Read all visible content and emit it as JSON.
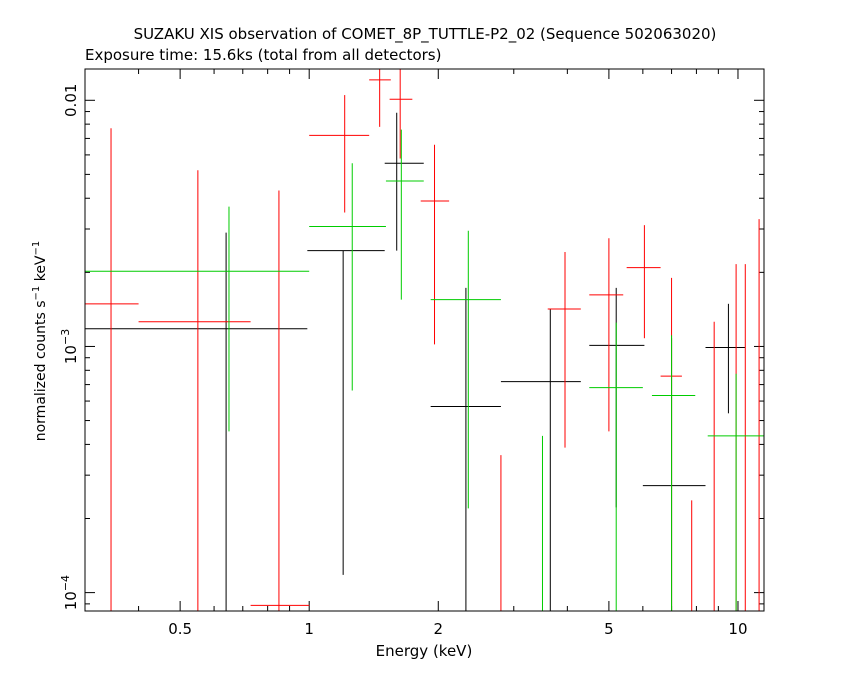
{
  "chart_data": {
    "type": "scatter",
    "title": "SUZAKU XIS observation of COMET_8P_TUTTLE-P2_02 (Sequence 502063020)",
    "subtitle": "Exposure time: 15.6ks (total from all detectors)",
    "xlabel": "Energy (keV)",
    "ylabel": "normalized counts s-1 keV-1",
    "xscale": "log",
    "yscale": "log",
    "xlim": [
      0.3,
      11.5
    ],
    "ylim": [
      8.42e-05,
      0.0134
    ],
    "x_ticks": [
      {
        "value": 0.5,
        "label": "0.5"
      },
      {
        "value": 1,
        "label": "1"
      },
      {
        "value": 2,
        "label": "2"
      },
      {
        "value": 5,
        "label": "5"
      },
      {
        "value": 10,
        "label": "10"
      }
    ],
    "y_ticks": [
      {
        "value": 0.01,
        "label": "0.01"
      },
      {
        "value": 0.001,
        "label": "10",
        "exp": "−3"
      },
      {
        "value": 0.0001,
        "label": "10",
        "exp": "−4"
      }
    ],
    "grid": false,
    "series": [
      {
        "color": "#000000",
        "points": [
          {
            "x": 0.64,
            "xlo": 0.3,
            "xhi": 0.99,
            "y": 0.00118,
            "ylo": 8.42e-05,
            "yhi": 0.0029
          },
          {
            "x": 1.2,
            "xlo": 0.99,
            "xhi": 1.5,
            "y": 0.00245,
            "ylo": 0.000118,
            "yhi": 0.0
          },
          {
            "x": 1.6,
            "xlo": 1.5,
            "xhi": 1.85,
            "y": 0.00555,
            "ylo": 0.00245,
            "yhi": 0.0089
          },
          {
            "x": 2.32,
            "xlo": 1.92,
            "xhi": 2.8,
            "y": 0.00057,
            "ylo": 8.42e-05,
            "yhi": 0.00173
          },
          {
            "x": 3.65,
            "xlo": 2.8,
            "xhi": 4.3,
            "y": 0.00072,
            "ylo": 8.42e-05,
            "yhi": 0.00142
          },
          {
            "x": 5.2,
            "xlo": 4.5,
            "xhi": 6.05,
            "y": 0.00101,
            "ylo": 0.000222,
            "yhi": 0.00173
          },
          {
            "x": 7.0,
            "xlo": 6.0,
            "xhi": 8.4,
            "y": 0.000272,
            "ylo": 8.42e-05,
            "yhi": 0.00108
          },
          {
            "x": 9.5,
            "xlo": 8.4,
            "xhi": 10.4,
            "y": 0.00099,
            "ylo": 0.000535,
            "yhi": 0.00149
          }
        ]
      },
      {
        "color": "#ff0000",
        "points": [
          {
            "x": 0.345,
            "xlo": 0.3,
            "xhi": 0.4,
            "y": 0.00149,
            "ylo": 8.42e-05,
            "yhi": 0.0077
          },
          {
            "x": 0.55,
            "xlo": 0.4,
            "xhi": 0.73,
            "y": 0.00126,
            "ylo": 8.42e-05,
            "yhi": 0.0052
          },
          {
            "x": 0.85,
            "xlo": 0.73,
            "xhi": 1.0,
            "y": 8.87e-05,
            "ylo": 8.42e-05,
            "yhi": 0.0043
          },
          {
            "x": 1.21,
            "xlo": 1.0,
            "xhi": 1.38,
            "y": 0.0072,
            "ylo": 0.0035,
            "yhi": 0.0105
          },
          {
            "x": 1.46,
            "xlo": 1.38,
            "xhi": 1.55,
            "y": 0.0121,
            "ylo": 0.0078,
            "yhi": 0.0134
          },
          {
            "x": 1.63,
            "xlo": 1.54,
            "xhi": 1.74,
            "y": 0.0101,
            "ylo": 0.0058,
            "yhi": 0.0134
          },
          {
            "x": 1.96,
            "xlo": 1.82,
            "xhi": 2.12,
            "y": 0.0039,
            "ylo": 0.00102,
            "yhi": 0.0066
          },
          {
            "x": 2.8,
            "xlo": 2.8,
            "xhi": 2.8,
            "y": 0.000102,
            "ylo": 8.42e-05,
            "yhi": 0.000362
          },
          {
            "x": 3.95,
            "xlo": 3.6,
            "xhi": 4.3,
            "y": 0.00142,
            "ylo": 0.000388,
            "yhi": 0.00242
          },
          {
            "x": 5.0,
            "xlo": 4.5,
            "xhi": 5.4,
            "y": 0.00162,
            "ylo": 0.000452,
            "yhi": 0.00275
          },
          {
            "x": 6.05,
            "xlo": 5.5,
            "xhi": 6.6,
            "y": 0.00209,
            "ylo": 0.00108,
            "yhi": 0.00311
          },
          {
            "x": 7.0,
            "xlo": 6.6,
            "xhi": 7.4,
            "y": 0.000758,
            "ylo": 8.42e-05,
            "yhi": 0.0019
          },
          {
            "x": 7.8,
            "xlo": 7.8,
            "xhi": 7.8,
            "y": 0.000102,
            "ylo": 8.42e-05,
            "yhi": 0.000237
          },
          {
            "x": 8.8,
            "xlo": 8.8,
            "xhi": 8.8,
            "y": 0.000102,
            "ylo": 8.42e-05,
            "yhi": 0.00126
          },
          {
            "x": 9.9,
            "xlo": 9.9,
            "xhi": 9.9,
            "y": 0.000102,
            "ylo": 8.42e-05,
            "yhi": 0.00216
          },
          {
            "x": 10.4,
            "xlo": 10.4,
            "xhi": 10.4,
            "y": 0.000102,
            "ylo": 8.42e-05,
            "yhi": 0.00216
          },
          {
            "x": 11.2,
            "xlo": 11.2,
            "xhi": 11.2,
            "y": 0.000102,
            "ylo": 8.42e-05,
            "yhi": 0.00329
          }
        ]
      },
      {
        "color": "#00cc00",
        "points": [
          {
            "x": 0.65,
            "xlo": 0.3,
            "xhi": 1.0,
            "y": 0.00202,
            "ylo": 0.000452,
            "yhi": 0.0037
          },
          {
            "x": 1.26,
            "xlo": 1.0,
            "xhi": 1.51,
            "y": 0.00307,
            "ylo": 0.000662,
            "yhi": 0.00555
          },
          {
            "x": 1.64,
            "xlo": 1.51,
            "xhi": 1.85,
            "y": 0.0047,
            "ylo": 0.00155,
            "yhi": 0.0076
          },
          {
            "x": 2.35,
            "xlo": 1.92,
            "xhi": 2.8,
            "y": 0.00155,
            "ylo": 0.00022,
            "yhi": 0.00295
          },
          {
            "x": 3.5,
            "xlo": 3.5,
            "xhi": 3.5,
            "y": 0.000102,
            "ylo": 8.42e-05,
            "yhi": 0.000433
          },
          {
            "x": 5.2,
            "xlo": 4.5,
            "xhi": 6.0,
            "y": 0.00068,
            "ylo": 8.42e-05,
            "yhi": 0.00125
          },
          {
            "x": 7.0,
            "xlo": 6.3,
            "xhi": 7.95,
            "y": 0.000632,
            "ylo": 8.42e-05,
            "yhi": 0.00111
          },
          {
            "x": 9.9,
            "xlo": 8.5,
            "xhi": 11.5,
            "y": 0.000433,
            "ylo": 8.42e-05,
            "yhi": 0.000775
          }
        ]
      }
    ]
  }
}
